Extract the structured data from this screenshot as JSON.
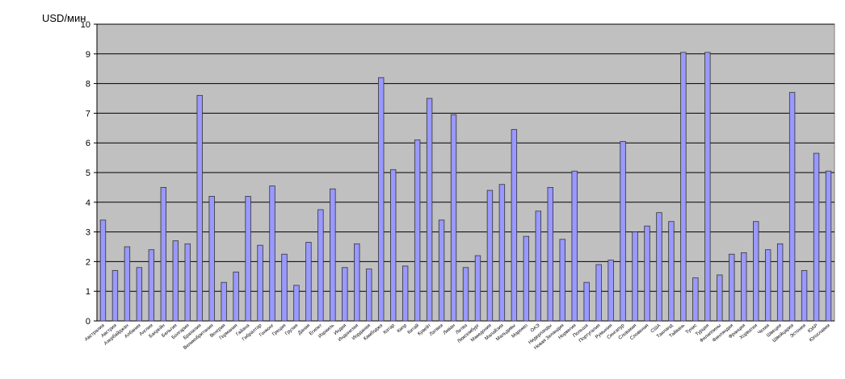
{
  "chart_data": {
    "type": "bar",
    "ylabel": "USD/мин",
    "categories": [
      "Австралия",
      "Австрия",
      "Азербайджан",
      "Албания",
      "Англия",
      "Бахрейн",
      "Бельгия",
      "Болгария",
      "Бразилия",
      "Великобритания",
      "Венгрия",
      "Германия",
      "Гайана",
      "Гибралтар",
      "Гонконг",
      "Греция",
      "Грузия",
      "Дания",
      "Египет",
      "Израиль",
      "Индия",
      "Индонезия",
      "Иордания",
      "Камбоджа",
      "Катар",
      "Кипр",
      "Китай",
      "Кувейт",
      "Латвия",
      "Ливан",
      "Литва",
      "Люксембург",
      "Македония",
      "Малайзия",
      "Мальдивы",
      "Марокко",
      "ОАЭ",
      "Нидерланды",
      "Новая Зеландия",
      "Норвегия",
      "Польша",
      "Португалия",
      "Румыния",
      "Сингапур",
      "Словакия",
      "Словения",
      "США",
      "Таиланд",
      "Тайвань",
      "Тунис",
      "Турция",
      "Филиппины",
      "Финляндия",
      "Франция",
      "Хорватия",
      "Чехия",
      "Швеция",
      "Швейцария",
      "Эстония",
      "ЮАР",
      "Югославия"
    ],
    "values": [
      3.4,
      1.7,
      2.5,
      1.8,
      2.4,
      4.5,
      2.7,
      2.6,
      7.6,
      4.2,
      1.3,
      1.65,
      4.2,
      2.55,
      4.55,
      2.25,
      1.2,
      2.65,
      3.75,
      4.45,
      1.8,
      2.6,
      1.75,
      8.2,
      5.1,
      1.85,
      6.1,
      7.5,
      3.4,
      6.95,
      1.8,
      2.2,
      4.4,
      4.6,
      6.45,
      2.85,
      3.7,
      4.5,
      2.75,
      5.05,
      1.3,
      1.9,
      2.05,
      6.05,
      3.0,
      3.2,
      3.65,
      3.35,
      9.05,
      1.45,
      9.05,
      1.55,
      2.25,
      2.3,
      3.35,
      2.4,
      2.6,
      7.7,
      1.7,
      5.65,
      5.05
    ],
    "color": "#9999ff",
    "plot_background": "#c0c0c0",
    "grid": true,
    "ylim": [
      0,
      10
    ],
    "yticks": [
      0,
      1,
      2,
      3,
      4,
      5,
      6,
      7,
      8,
      9,
      10
    ]
  }
}
